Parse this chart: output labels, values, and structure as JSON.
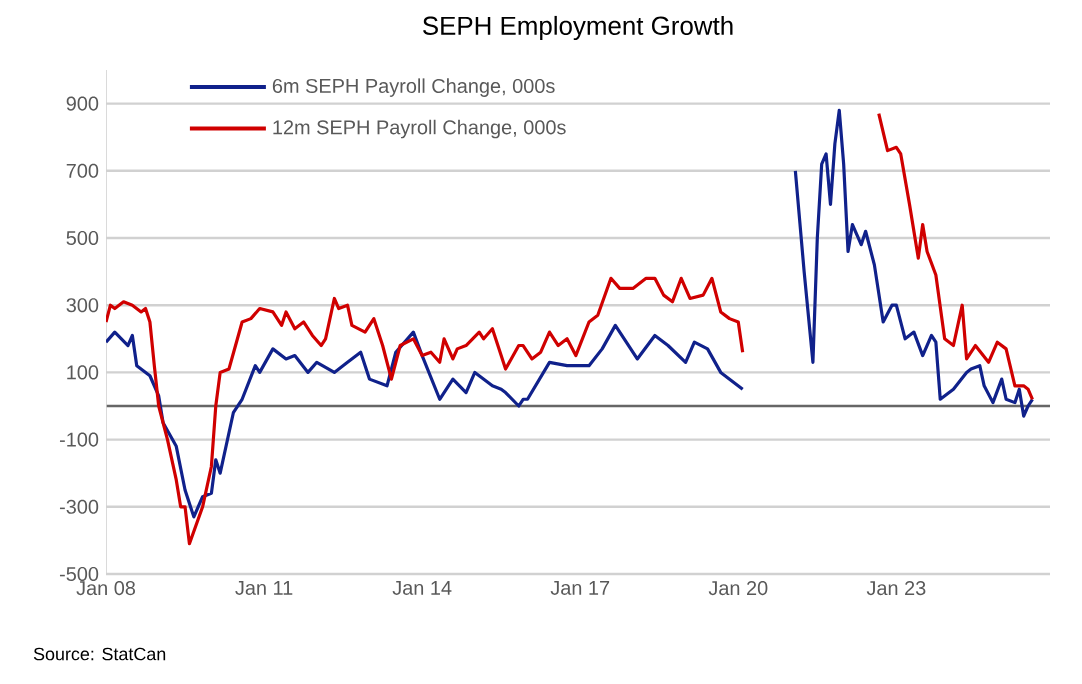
{
  "chart_data": {
    "type": "line",
    "title": "SEPH Employment Growth",
    "annotations": [
      "Source:  StatCan"
    ],
    "xlim": [
      "2008-01",
      "2025-12"
    ],
    "xticks": [
      {
        "value": "2008-01",
        "label": "Jan 08"
      },
      {
        "value": "2011-01",
        "label": "Jan 11"
      },
      {
        "value": "2014-01",
        "label": "Jan 14"
      },
      {
        "value": "2017-01",
        "label": "Jan 17"
      },
      {
        "value": "2020-01",
        "label": "Jan 20"
      },
      {
        "value": "2023-01",
        "label": "Jan 23"
      }
    ],
    "ylim": [
      -500,
      1000
    ],
    "yticks": [
      -500,
      -300,
      -100,
      100,
      300,
      500,
      700,
      900
    ],
    "grid": "y",
    "legend": "top left",
    "marker": "none",
    "line_style": "solid",
    "series": [
      {
        "name": "6m SEPH Payroll Change, 000s",
        "color": "#10218b",
        "x": [
          "2008-01",
          "2008-03",
          "2008-06",
          "2008-07",
          "2008-08",
          "2008-11",
          "2009-01",
          "2009-02",
          "2009-05",
          "2009-07",
          "2009-09",
          "2009-11",
          "2010-01",
          "2010-02",
          "2010-03",
          "2010-06",
          "2010-08",
          "2010-11",
          "2010-12",
          "2011-03",
          "2011-06",
          "2011-08",
          "2011-11",
          "2012-01",
          "2012-05",
          "2012-08",
          "2012-11",
          "2013-01",
          "2013-05",
          "2013-07",
          "2013-11",
          "2014-01",
          "2014-05",
          "2014-08",
          "2014-11",
          "2015-01",
          "2015-05",
          "2015-07",
          "2015-08",
          "2015-11",
          "2015-12",
          "2016-01",
          "2016-06",
          "2016-10",
          "2017-03",
          "2017-06",
          "2017-09",
          "2017-12",
          "2018-02",
          "2018-06",
          "2018-09",
          "2019-01",
          "2019-03",
          "2019-06",
          "2019-09",
          "2019-12",
          "2020-02",
          "2020-03",
          "2020-06",
          "2020-08",
          "2020-09",
          "2021-01",
          "2021-02",
          "2021-04",
          "2021-06",
          "2021-07",
          "2021-08",
          "2021-09",
          "2021-10",
          "2021-11",
          "2021-12",
          "2022-01",
          "2022-02",
          "2022-03",
          "2022-05",
          "2022-06",
          "2022-08",
          "2022-10",
          "2022-12",
          "2023-01",
          "2023-03",
          "2023-05",
          "2023-07",
          "2023-09",
          "2023-10",
          "2023-11",
          "2024-02",
          "2024-05",
          "2024-06",
          "2024-08",
          "2024-09",
          "2024-11",
          "2025-01",
          "2025-02",
          "2025-04",
          "2025-05",
          "2025-06",
          "2025-07",
          "2025-08"
        ],
        "values": [
          190,
          220,
          180,
          210,
          120,
          90,
          30,
          -50,
          -120,
          -250,
          -330,
          -270,
          -260,
          -160,
          -200,
          -20,
          20,
          120,
          100,
          170,
          140,
          150,
          100,
          130,
          100,
          130,
          160,
          80,
          60,
          160,
          220,
          150,
          20,
          80,
          40,
          100,
          60,
          50,
          40,
          0,
          20,
          20,
          130,
          120,
          120,
          170,
          240,
          180,
          140,
          210,
          180,
          130,
          190,
          170,
          100,
          70,
          50,
          null,
          null,
          null,
          null,
          null,
          700,
          400,
          130,
          500,
          720,
          750,
          600,
          780,
          880,
          720,
          460,
          540,
          480,
          520,
          420,
          250,
          300,
          300,
          200,
          220,
          150,
          210,
          190,
          20,
          50,
          100,
          110,
          120,
          60,
          10,
          80,
          20,
          10,
          50,
          -30,
          0,
          20
        ]
      },
      {
        "name": "12m SEPH Payroll Change, 000s",
        "color": "#d00000",
        "x": [
          "2008-01",
          "2008-02",
          "2008-03",
          "2008-05",
          "2008-07",
          "2008-09",
          "2008-10",
          "2008-11",
          "2008-12",
          "2009-01",
          "2009-03",
          "2009-05",
          "2009-06",
          "2009-07",
          "2009-08",
          "2009-11",
          "2010-01",
          "2010-02",
          "2010-03",
          "2010-05",
          "2010-08",
          "2010-10",
          "2010-12",
          "2011-03",
          "2011-05",
          "2011-06",
          "2011-08",
          "2011-10",
          "2011-12",
          "2012-02",
          "2012-03",
          "2012-05",
          "2012-06",
          "2012-08",
          "2012-09",
          "2012-12",
          "2013-02",
          "2013-04",
          "2013-06",
          "2013-08",
          "2013-11",
          "2014-01",
          "2014-03",
          "2014-05",
          "2014-06",
          "2014-08",
          "2014-09",
          "2014-11",
          "2015-02",
          "2015-03",
          "2015-05",
          "2015-07",
          "2015-08",
          "2015-11",
          "2015-12",
          "2016-02",
          "2016-04",
          "2016-06",
          "2016-08",
          "2016-10",
          "2016-12",
          "2017-03",
          "2017-05",
          "2017-08",
          "2017-10",
          "2018-01",
          "2018-04",
          "2018-06",
          "2018-08",
          "2018-10",
          "2018-12",
          "2019-02",
          "2019-05",
          "2019-07",
          "2019-09",
          "2019-11",
          "2020-01",
          "2020-02",
          "2020-03",
          "2020-12",
          "2021-02",
          "2021-03",
          "2021-09",
          "2021-11",
          "2021-12",
          "2022-07",
          "2022-09",
          "2022-11",
          "2023-01",
          "2023-02",
          "2023-04",
          "2023-06",
          "2023-07",
          "2023-08",
          "2023-10",
          "2023-12",
          "2024-02",
          "2024-04",
          "2024-05",
          "2024-07",
          "2024-10",
          "2024-12",
          "2025-02",
          "2025-04",
          "2025-06",
          "2025-07",
          "2025-08"
        ],
        "values": [
          250,
          300,
          290,
          310,
          300,
          280,
          290,
          250,
          120,
          0,
          -100,
          -220,
          -300,
          -300,
          -410,
          -300,
          -180,
          0,
          100,
          110,
          250,
          260,
          290,
          280,
          240,
          280,
          230,
          250,
          210,
          180,
          200,
          320,
          290,
          300,
          240,
          220,
          260,
          180,
          80,
          180,
          200,
          150,
          160,
          130,
          200,
          140,
          170,
          180,
          220,
          200,
          230,
          150,
          110,
          180,
          180,
          140,
          160,
          220,
          180,
          200,
          150,
          250,
          270,
          380,
          350,
          350,
          380,
          380,
          330,
          310,
          380,
          320,
          330,
          380,
          280,
          260,
          250,
          160,
          null,
          null,
          null,
          null,
          null,
          null,
          null,
          null,
          870,
          760,
          770,
          750,
          600,
          440,
          540,
          460,
          390,
          200,
          180,
          300,
          140,
          180,
          130,
          190,
          170,
          60,
          60,
          50,
          20
        ]
      }
    ]
  }
}
